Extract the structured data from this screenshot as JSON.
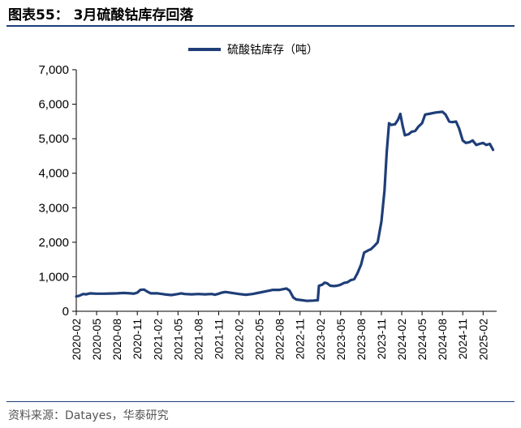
{
  "figure": {
    "title": "图表55： 3月硫酸钴库存回落",
    "source": "资料来源：Datayes，华泰研究"
  },
  "colors": {
    "series": "#1f3e78",
    "rule": "#1f3e78",
    "axis": "#000000"
  },
  "chart_data": {
    "type": "line",
    "title": "",
    "xlabel": "",
    "ylabel": "",
    "ylim": [
      0,
      7000
    ],
    "yticks": [
      0,
      1000,
      2000,
      3000,
      4000,
      5000,
      6000,
      7000
    ],
    "ytick_labels": [
      "0",
      "1,000",
      "2,000",
      "3,000",
      "4,000",
      "5,000",
      "6,000",
      "7,000"
    ],
    "x_range": [
      "2020-02",
      "2025-04"
    ],
    "xtick_labels": [
      "2020-02",
      "2020-05",
      "2020-08",
      "2020-11",
      "2021-02",
      "2021-05",
      "2021-08",
      "2021-11",
      "2022-02",
      "2022-05",
      "2022-08",
      "2022-11",
      "2023-02",
      "2023-05",
      "2023-08",
      "2023-11",
      "2024-02",
      "2024-05",
      "2024-08",
      "2024-11",
      "2025-02"
    ],
    "legend": {
      "position": "top-center"
    },
    "grid": false,
    "series": [
      {
        "name": "硫酸钴库存（吨）",
        "color": "#1f3e78",
        "points": [
          [
            "2020-02-01",
            430
          ],
          [
            "2020-02-15",
            450
          ],
          [
            "2020-03-01",
            500
          ],
          [
            "2020-03-15",
            490
          ],
          [
            "2020-04-01",
            520
          ],
          [
            "2020-05-01",
            510
          ],
          [
            "2020-06-01",
            510
          ],
          [
            "2020-07-01",
            515
          ],
          [
            "2020-08-01",
            520
          ],
          [
            "2020-09-01",
            530
          ],
          [
            "2020-10-01",
            520
          ],
          [
            "2020-10-15",
            510
          ],
          [
            "2020-11-01",
            540
          ],
          [
            "2020-11-15",
            620
          ],
          [
            "2020-12-01",
            630
          ],
          [
            "2020-12-15",
            570
          ],
          [
            "2021-01-01",
            520
          ],
          [
            "2021-02-01",
            520
          ],
          [
            "2021-03-01",
            490
          ],
          [
            "2021-04-01",
            470
          ],
          [
            "2021-05-01",
            500
          ],
          [
            "2021-05-15",
            520
          ],
          [
            "2021-06-01",
            500
          ],
          [
            "2021-07-01",
            490
          ],
          [
            "2021-08-01",
            500
          ],
          [
            "2021-09-01",
            490
          ],
          [
            "2021-10-01",
            500
          ],
          [
            "2021-10-15",
            480
          ],
          [
            "2021-11-01",
            510
          ],
          [
            "2021-11-15",
            540
          ],
          [
            "2021-12-01",
            560
          ],
          [
            "2022-01-01",
            530
          ],
          [
            "2022-02-01",
            500
          ],
          [
            "2022-03-01",
            480
          ],
          [
            "2022-04-01",
            500
          ],
          [
            "2022-05-01",
            540
          ],
          [
            "2022-06-01",
            580
          ],
          [
            "2022-07-01",
            620
          ],
          [
            "2022-08-01",
            620
          ],
          [
            "2022-09-01",
            660
          ],
          [
            "2022-09-15",
            600
          ],
          [
            "2022-10-01",
            400
          ],
          [
            "2022-10-15",
            340
          ],
          [
            "2022-11-01",
            330
          ],
          [
            "2022-12-01",
            300
          ],
          [
            "2023-01-01",
            310
          ],
          [
            "2023-01-20",
            320
          ],
          [
            "2023-01-25",
            740
          ],
          [
            "2023-02-10",
            770
          ],
          [
            "2023-02-20",
            830
          ],
          [
            "2023-03-01",
            810
          ],
          [
            "2023-03-15",
            740
          ],
          [
            "2023-04-01",
            730
          ],
          [
            "2023-04-15",
            740
          ],
          [
            "2023-05-01",
            770
          ],
          [
            "2023-05-15",
            820
          ],
          [
            "2023-06-01",
            840
          ],
          [
            "2023-06-15",
            900
          ],
          [
            "2023-07-01",
            930
          ],
          [
            "2023-07-15",
            1100
          ],
          [
            "2023-08-01",
            1350
          ],
          [
            "2023-08-15",
            1700
          ],
          [
            "2023-09-01",
            1760
          ],
          [
            "2023-09-15",
            1800
          ],
          [
            "2023-10-01",
            1900
          ],
          [
            "2023-10-15",
            2000
          ],
          [
            "2023-11-01",
            2600
          ],
          [
            "2023-11-15",
            3500
          ],
          [
            "2023-11-25",
            4600
          ],
          [
            "2023-12-05",
            5450
          ],
          [
            "2023-12-15",
            5400
          ],
          [
            "2024-01-01",
            5420
          ],
          [
            "2024-01-15",
            5550
          ],
          [
            "2024-01-25",
            5720
          ],
          [
            "2024-02-05",
            5380
          ],
          [
            "2024-02-15",
            5100
          ],
          [
            "2024-03-01",
            5130
          ],
          [
            "2024-03-15",
            5200
          ],
          [
            "2024-04-01",
            5230
          ],
          [
            "2024-04-15",
            5350
          ],
          [
            "2024-05-01",
            5450
          ],
          [
            "2024-05-15",
            5700
          ],
          [
            "2024-06-01",
            5720
          ],
          [
            "2024-07-01",
            5760
          ],
          [
            "2024-08-01",
            5780
          ],
          [
            "2024-08-15",
            5700
          ],
          [
            "2024-09-01",
            5500
          ],
          [
            "2024-09-15",
            5480
          ],
          [
            "2024-10-01",
            5500
          ],
          [
            "2024-10-15",
            5300
          ],
          [
            "2024-11-01",
            4950
          ],
          [
            "2024-11-15",
            4880
          ],
          [
            "2024-12-01",
            4900
          ],
          [
            "2024-12-15",
            4950
          ],
          [
            "2025-01-01",
            4820
          ],
          [
            "2025-01-15",
            4850
          ],
          [
            "2025-02-01",
            4880
          ],
          [
            "2025-02-15",
            4820
          ],
          [
            "2025-03-01",
            4850
          ],
          [
            "2025-03-15",
            4680
          ]
        ]
      }
    ]
  }
}
